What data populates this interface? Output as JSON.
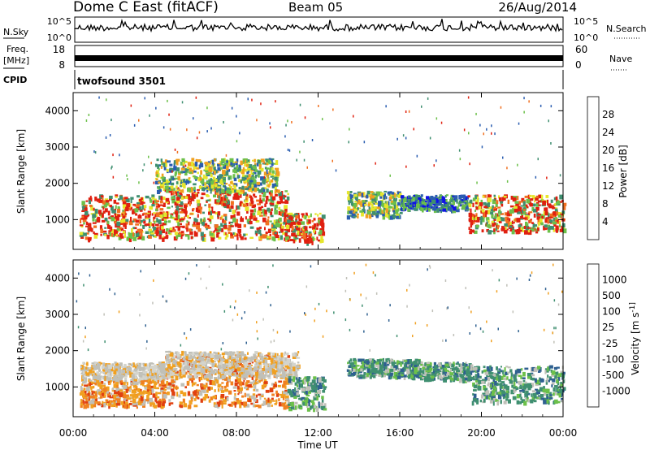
{
  "header": {
    "station": "Dome C East (fitACF)",
    "beam": "Beam 05",
    "date": "26/Aug/2014"
  },
  "top_panels": {
    "nsky_label": "N.Sky",
    "nsearch_label": "N.Search",
    "noise_ticks": [
      "10^5",
      "10^0"
    ],
    "freq_label": "Freq.",
    "freq_unit": "[MHz]",
    "freq_ticks": [
      "18",
      "8"
    ],
    "nave_label": "Nave",
    "nave_ticks": [
      "60",
      "0"
    ],
    "cpid_label": "CPID",
    "cpid_value": "twofsound 3501"
  },
  "chart_data": [
    {
      "type": "heatmap",
      "name": "power",
      "ylabel": "Slant Range [km]",
      "xlabel": "",
      "x_ticks": [
        "00:00",
        "04:00",
        "08:00",
        "12:00",
        "16:00",
        "20:00",
        "00:00"
      ],
      "x_range_hours": [
        0,
        24
      ],
      "y_ticks": [
        1000,
        2000,
        3000,
        4000
      ],
      "ylim": [
        180,
        4500
      ],
      "colorbar": {
        "label": "Power [dB]",
        "tick_labels": [
          "4",
          "8",
          "12",
          "16",
          "20",
          "24",
          "28"
        ],
        "colors": [
          "#1010e8",
          "#2a5db0",
          "#3f8f70",
          "#6cc04a",
          "#e6e62c",
          "#f0a020",
          "#f07020",
          "#e02010"
        ]
      },
      "regions": [
        {
          "h": [
            0.3,
            4.2
          ],
          "r": [
            500,
            1700
          ],
          "level": "strong"
        },
        {
          "h": [
            4.2,
            10.5
          ],
          "r": [
            500,
            1900
          ],
          "level": "strong"
        },
        {
          "h": [
            10.3,
            12.2
          ],
          "r": [
            400,
            1200
          ],
          "level": "strong"
        },
        {
          "h": [
            4.0,
            10.0
          ],
          "r": [
            1800,
            2700
          ],
          "level": "medium"
        },
        {
          "h": [
            13.4,
            16.0
          ],
          "r": [
            1100,
            1800
          ],
          "level": "medium"
        },
        {
          "h": [
            16.0,
            19.3
          ],
          "r": [
            1300,
            1700
          ],
          "level": "weak"
        },
        {
          "h": [
            19.3,
            24.0
          ],
          "r": [
            700,
            1700
          ],
          "level": "strong"
        }
      ]
    },
    {
      "type": "heatmap",
      "name": "velocity",
      "ylabel": "Slant Range [km]",
      "xlabel": "Time UT",
      "x_ticks": [
        "00:00",
        "04:00",
        "08:00",
        "12:00",
        "16:00",
        "20:00",
        "00:00"
      ],
      "x_range_hours": [
        0,
        24
      ],
      "y_ticks": [
        1000,
        2000,
        3000,
        4000
      ],
      "ylim": [
        180,
        4500
      ],
      "colorbar": {
        "label": "Velocity [m s^-1]",
        "tick_labels": [
          "1000",
          "500",
          "100",
          "25",
          "-25",
          "-100",
          "-500",
          "-1000"
        ],
        "colors": [
          "#1a3aa8",
          "#2f6090",
          "#3f8f70",
          "#6cc04a",
          "#c0c0b8",
          "#f0a020",
          "#f08020",
          "#e04010",
          "#e01010"
        ]
      },
      "regions": [
        {
          "h": [
            0.3,
            4.5
          ],
          "r": [
            1200,
            1700
          ],
          "level": "grey"
        },
        {
          "h": [
            0.3,
            4.5
          ],
          "r": [
            500,
            1200
          ],
          "level": "neg"
        },
        {
          "h": [
            4.5,
            10.5
          ],
          "r": [
            500,
            1900
          ],
          "level": "neg"
        },
        {
          "h": [
            4.5,
            11.0
          ],
          "r": [
            1300,
            2000
          ],
          "level": "grey"
        },
        {
          "h": [
            10.5,
            12.3
          ],
          "r": [
            400,
            1300
          ],
          "level": "pos"
        },
        {
          "h": [
            13.4,
            17.0
          ],
          "r": [
            1300,
            1800
          ],
          "level": "pos"
        },
        {
          "h": [
            17.0,
            19.5
          ],
          "r": [
            1200,
            1700
          ],
          "level": "pos"
        },
        {
          "h": [
            19.5,
            24.0
          ],
          "r": [
            600,
            1600
          ],
          "level": "pos"
        }
      ]
    }
  ],
  "axis": {
    "x_label": "Time UT"
  }
}
